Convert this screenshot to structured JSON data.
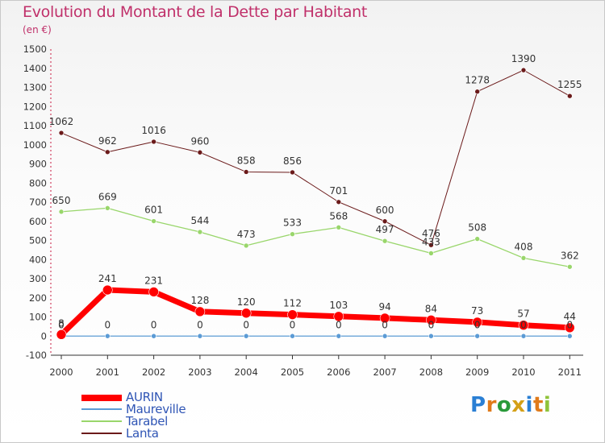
{
  "title": "Evolution du Montant de la Dette par Habitant",
  "subtitle": "(en €)",
  "logo": {
    "text": "Proxiti",
    "colors": [
      "#2a7fd4",
      "#e07a1a",
      "#2a9a3a",
      "#d4a017",
      "#2a7fd4",
      "#e07a1a",
      "#8fc33a"
    ]
  },
  "legend": [
    {
      "label": "AURIN"
    },
    {
      "label": "Maureville"
    },
    {
      "label": "Tarabel"
    },
    {
      "label": "Lanta"
    }
  ],
  "chart_data": {
    "type": "line",
    "categories": [
      "2000",
      "2001",
      "2002",
      "2003",
      "2004",
      "2005",
      "2006",
      "2007",
      "2008",
      "2009",
      "2010",
      "2011"
    ],
    "ylim": [
      -100,
      1500
    ],
    "yticks": [
      -100,
      0,
      100,
      200,
      300,
      400,
      500,
      600,
      700,
      800,
      900,
      1000,
      1100,
      1200,
      1300,
      1400,
      1500
    ],
    "grid": false,
    "legend_position": "bottom-left",
    "series": [
      {
        "name": "Lanta",
        "color": "#6b1a1a",
        "line_width": 1,
        "marker_r": 3,
        "values": [
          1062,
          962,
          1016,
          960,
          858,
          856,
          701,
          600,
          476,
          1278,
          1390,
          1255
        ]
      },
      {
        "name": "Tarabel",
        "color": "#99d66b",
        "line_width": 1.3,
        "marker_r": 3,
        "values": [
          650,
          669,
          601,
          544,
          473,
          533,
          568,
          497,
          433,
          508,
          408,
          362
        ]
      },
      {
        "name": "Maureville",
        "color": "#5b9bd5",
        "line_width": 1.3,
        "marker_r": 3,
        "values": [
          0,
          0,
          0,
          0,
          0,
          0,
          0,
          0,
          0,
          0,
          0,
          0
        ]
      },
      {
        "name": "AURIN",
        "color": "#ff0000",
        "line_width": 7,
        "marker_r": 6,
        "values": [
          8,
          241,
          231,
          128,
          120,
          112,
          103,
          94,
          84,
          73,
          57,
          44
        ]
      }
    ]
  }
}
